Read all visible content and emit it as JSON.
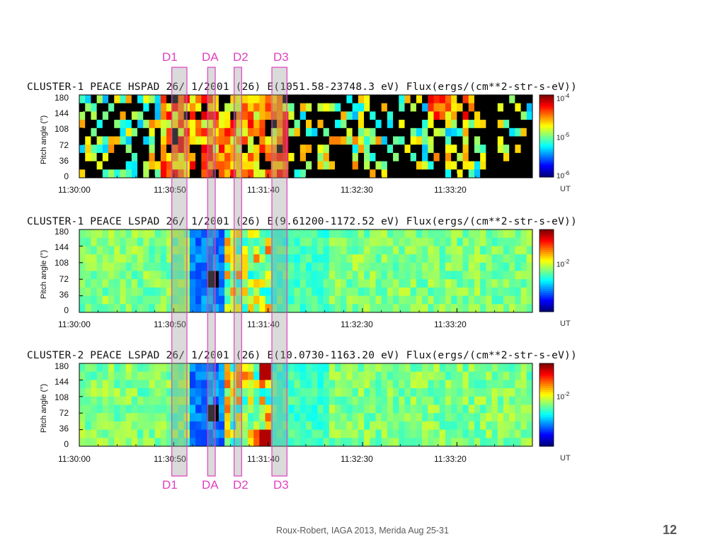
{
  "footer": "Roux-Robert, IAGA 2013, Merida Aug 25-31",
  "page_number": "12",
  "event_markers": {
    "labels": [
      "D1",
      "DA",
      "D2",
      "D3"
    ],
    "time_ranges": [
      [
        "11:30:49",
        "11:30:57"
      ],
      [
        "11:31:08",
        "11:31:12"
      ],
      [
        "11:31:22",
        "11:31:26"
      ],
      [
        "11:31:42",
        "11:31:50"
      ]
    ],
    "label_color": "#e040c0"
  },
  "chart_data": [
    {
      "type": "heatmap",
      "title": "CLUSTER-1 PEACE HSPAD 26/ 1/2001 (26) E(1051.58-23748.3 eV) Flux(ergs/(cm**2-str-s-eV))",
      "ylabel": "Pitch angle (°)",
      "yticks": [
        "180",
        "144",
        "108",
        "72",
        "36",
        "0"
      ],
      "ylim": [
        0,
        180
      ],
      "xticks": [
        "11:30:00",
        "11:30:50",
        "11:31:40",
        "11:32:30",
        "11:33:20"
      ],
      "xlim": [
        "11:30:00",
        "11:34:00"
      ],
      "x_unit": "UT",
      "colorbar": {
        "scale": "log",
        "ticks": [
          {
            "base": "10",
            "exp": "-4"
          },
          {
            "base": "10",
            "exp": "-5"
          },
          {
            "base": "10",
            "exp": "-6"
          }
        ]
      }
    },
    {
      "type": "heatmap",
      "title": "CLUSTER-1 PEACE LSPAD 26/ 1/2001 (26) E(9.61200-1172.52 eV) Flux(ergs/(cm**2-str-s-eV))",
      "ylabel": "Pitch angle (°)",
      "yticks": [
        "180",
        "144",
        "108",
        "72",
        "36",
        "0"
      ],
      "ylim": [
        0,
        180
      ],
      "xticks": [
        "11:30:00",
        "11:30:50",
        "11:31:40",
        "11:32:30",
        "11:33:20"
      ],
      "xlim": [
        "11:30:00",
        "11:34:00"
      ],
      "x_unit": "UT",
      "colorbar": {
        "scale": "log",
        "ticks": [
          {
            "base": "10",
            "exp": "-2"
          }
        ]
      }
    },
    {
      "type": "heatmap",
      "title": "CLUSTER-2 PEACE LSPAD 26/ 1/2001 (26) E(10.0730-1163.20 eV) Flux(ergs/(cm**2-str-s-eV))",
      "ylabel": "Pitch angle (°)",
      "yticks": [
        "180",
        "144",
        "108",
        "72",
        "36",
        "0"
      ],
      "ylim": [
        0,
        180
      ],
      "xticks": [
        "11:30:00",
        "11:30:50",
        "11:31:40",
        "11:32:30",
        "11:33:20"
      ],
      "xlim": [
        "11:30:00",
        "11:34:00"
      ],
      "x_unit": "UT",
      "colorbar": {
        "scale": "log",
        "ticks": [
          {
            "base": "10",
            "exp": "-2"
          }
        ]
      }
    }
  ]
}
